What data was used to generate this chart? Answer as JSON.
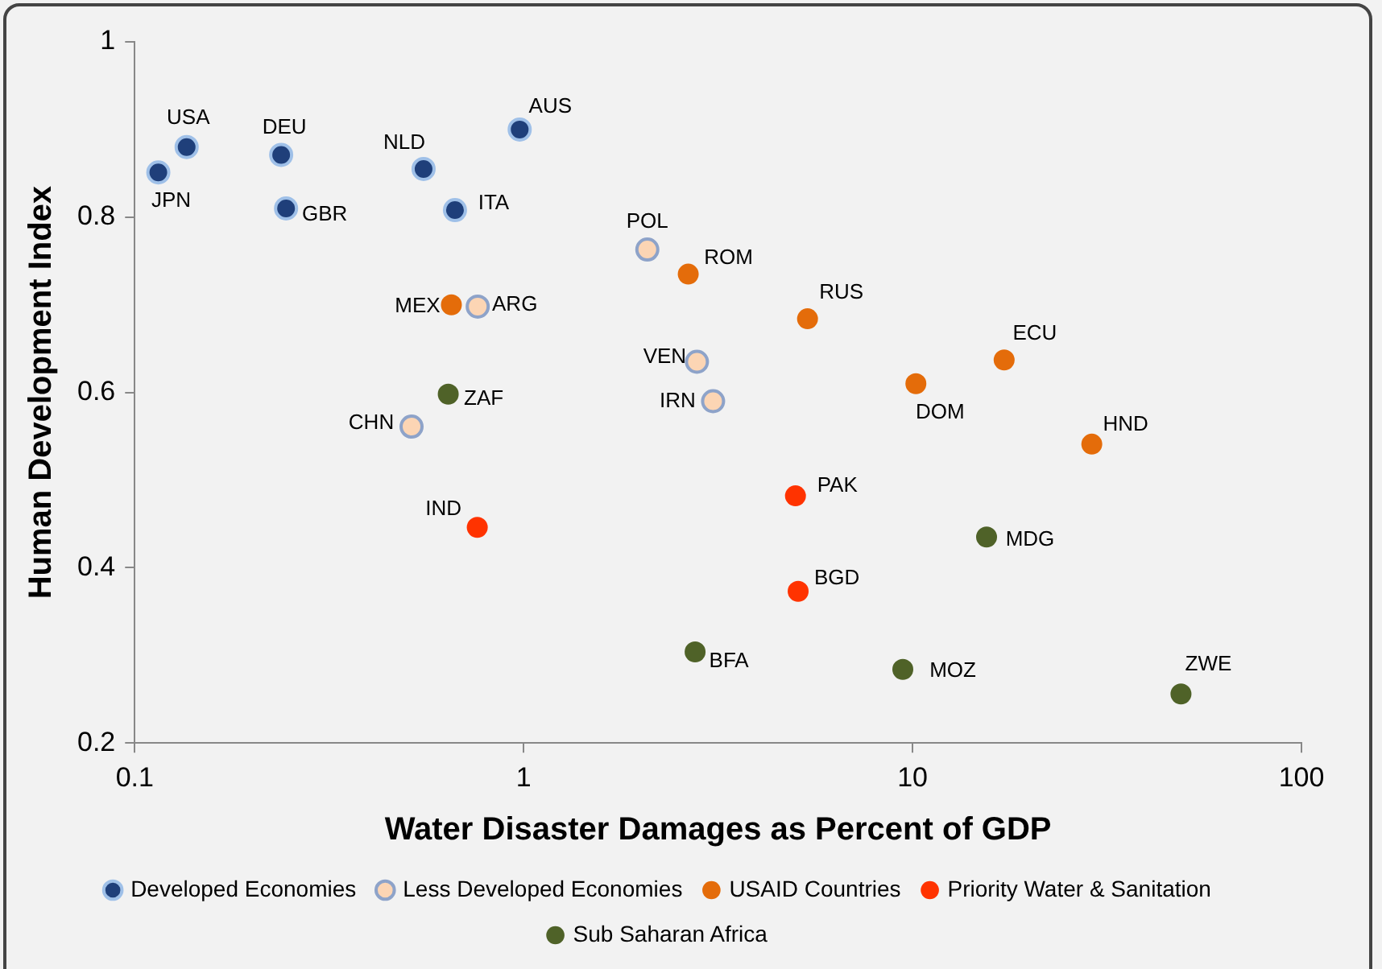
{
  "chart_data": {
    "type": "scatter",
    "xlabel": "Water Disaster Damages as Percent of GDP",
    "ylabel": "Human Development Index",
    "log": "x",
    "xlim": [
      0.1,
      100
    ],
    "xticks": [
      0.1,
      1,
      10,
      100
    ],
    "ylim": [
      0.2,
      1
    ],
    "yticks": [
      0.2,
      0.4,
      0.6,
      0.8,
      1
    ],
    "grid": false,
    "legend": "bottom",
    "marker": "circle",
    "series": [
      {
        "name": "Developed Economies",
        "color": "#1f3f7a",
        "x": [
          0.115,
          0.136,
          0.238,
          0.245,
          0.553,
          0.666,
          0.977
        ],
        "values": [
          0.851,
          0.88,
          0.871,
          0.81,
          0.855,
          0.808,
          0.9
        ]
      },
      {
        "name": "Less Developed Economies",
        "color": "#fcd5b4",
        "x": [
          2.08,
          0.762,
          2.79,
          3.07,
          0.515
        ],
        "values": [
          0.763,
          0.698,
          0.635,
          0.59,
          0.561
        ]
      },
      {
        "name": "USAID Countries",
        "color": "#e46c0a",
        "x": [
          2.65,
          0.652,
          5.37,
          17.2,
          10.2,
          28.9
        ],
        "values": [
          0.735,
          0.7,
          0.684,
          0.637,
          0.61,
          0.541
        ]
      },
      {
        "name": "Priority Water & Sanitation",
        "color": "#ff3300",
        "x": [
          0.76,
          5.0,
          5.08
        ],
        "values": [
          0.446,
          0.482,
          0.373
        ]
      },
      {
        "name": "Sub Saharan Africa",
        "color": "#4f6228",
        "x": [
          0.64,
          15.5,
          2.76,
          9.44,
          49
        ],
        "values": [
          0.598,
          0.435,
          0.304,
          0.284,
          0.256
        ]
      }
    ],
    "annotations": [
      {
        "text": "JPN",
        "x": 0.115,
        "y": 0.851
      },
      {
        "text": "USA",
        "x": 0.136,
        "y": 0.88
      },
      {
        "text": "DEU",
        "x": 0.238,
        "y": 0.871
      },
      {
        "text": "GBR",
        "x": 0.245,
        "y": 0.81
      },
      {
        "text": "NLD",
        "x": 0.553,
        "y": 0.855
      },
      {
        "text": "ITA",
        "x": 0.666,
        "y": 0.808
      },
      {
        "text": "AUS",
        "x": 0.977,
        "y": 0.9
      },
      {
        "text": "POL",
        "x": 2.08,
        "y": 0.763
      },
      {
        "text": "ARG",
        "x": 0.762,
        "y": 0.698
      },
      {
        "text": "VEN",
        "x": 2.79,
        "y": 0.635
      },
      {
        "text": "IRN",
        "x": 3.07,
        "y": 0.59
      },
      {
        "text": "CHN",
        "x": 0.515,
        "y": 0.561
      },
      {
        "text": "ROM",
        "x": 2.65,
        "y": 0.735
      },
      {
        "text": "MEX",
        "x": 0.652,
        "y": 0.7
      },
      {
        "text": "RUS",
        "x": 5.37,
        "y": 0.684
      },
      {
        "text": "ECU",
        "x": 17.2,
        "y": 0.637
      },
      {
        "text": "DOM",
        "x": 10.2,
        "y": 0.61
      },
      {
        "text": "HND",
        "x": 28.9,
        "y": 0.541
      },
      {
        "text": "IND",
        "x": 0.76,
        "y": 0.446
      },
      {
        "text": "PAK",
        "x": 5.0,
        "y": 0.482
      },
      {
        "text": "BGD",
        "x": 5.08,
        "y": 0.373
      },
      {
        "text": "ZAF",
        "x": 0.64,
        "y": 0.598
      },
      {
        "text": "MDG",
        "x": 15.5,
        "y": 0.435
      },
      {
        "text": "BFA",
        "x": 2.76,
        "y": 0.304
      },
      {
        "text": "MOZ",
        "x": 9.44,
        "y": 0.284
      },
      {
        "text": "ZWE",
        "x": 49,
        "y": 0.256
      }
    ]
  }
}
